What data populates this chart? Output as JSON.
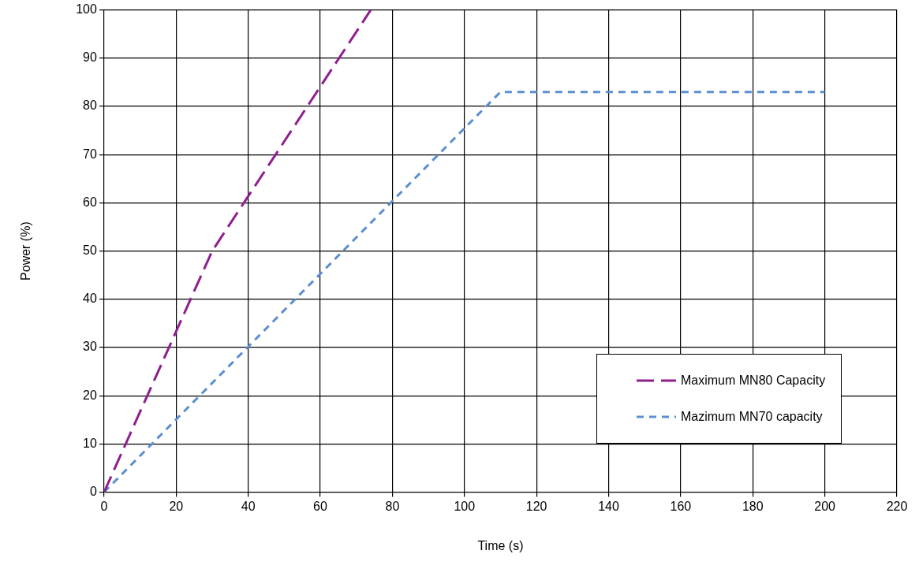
{
  "chart_data": {
    "type": "line",
    "xlabel": "Time (s)",
    "ylabel": "Power (%)",
    "xlim": [
      0,
      220
    ],
    "xticks": [
      0,
      20,
      40,
      60,
      80,
      100,
      120,
      140,
      160,
      180,
      200,
      220
    ],
    "ylim": [
      0,
      100
    ],
    "yticks": [
      0,
      10,
      20,
      30,
      40,
      50,
      60,
      70,
      80,
      90,
      100
    ],
    "grid": true,
    "legend": "bottom right",
    "marker": "none",
    "series": [
      {
        "name": "Maximum MN80 Capacity",
        "color": "#8e1f8e",
        "line_style": "dashed",
        "x": [
          0,
          30,
          74
        ],
        "values": [
          0,
          50,
          100
        ]
      },
      {
        "name": "Mazimum MN70 capacity",
        "color": "#5b8fd0",
        "line_style": "dotted",
        "x": [
          0,
          110,
          200
        ],
        "values": [
          0,
          83,
          83
        ]
      }
    ]
  }
}
